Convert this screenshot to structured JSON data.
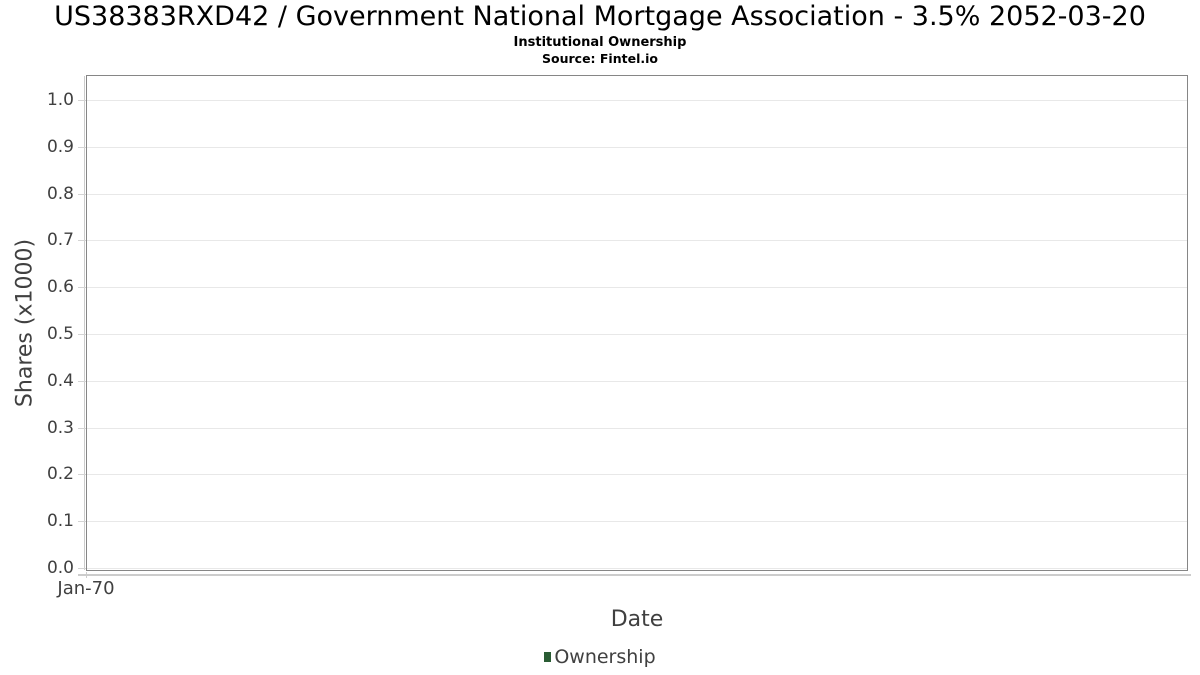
{
  "chart": {
    "title": "US38383RXD42 / Government National Mortgage Association - 3.5% 2052-03-20",
    "subtitle": "Institutional Ownership",
    "source": "Source: Fintel.io"
  },
  "chart_data": {
    "type": "line",
    "title": "US38383RXD42 / Government National Mortgage Association - 3.5% 2052-03-20",
    "subtitle": "Institutional Ownership",
    "source": "Source: Fintel.io",
    "xlabel": "Date",
    "ylabel": "Shares (x1000)",
    "x_tick_labels": [
      "Jan-70"
    ],
    "y_tick_labels": [
      "0.0",
      "0.1",
      "0.2",
      "0.3",
      "0.4",
      "0.5",
      "0.6",
      "0.7",
      "0.8",
      "0.9",
      "1.0"
    ],
    "ylim": [
      0.0,
      1.05
    ],
    "grid": "horizontal",
    "grid_color": "#e8e8e8",
    "legend_position": "bottom-center",
    "series": [
      {
        "name": "Ownership",
        "color": "#2a5c34",
        "x": [],
        "values": []
      }
    ]
  }
}
